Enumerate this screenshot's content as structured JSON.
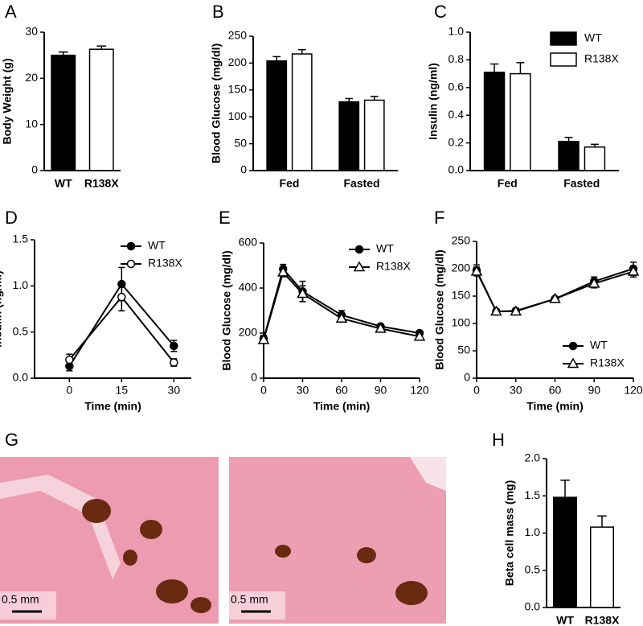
{
  "chart_data": [
    {
      "type": "bar",
      "label": "A",
      "ylabel": "Body Weight (g)",
      "categories": [
        "WT",
        "R138X"
      ],
      "values": [
        25,
        26.3
      ],
      "errors": [
        0.7,
        0.7
      ],
      "colors": [
        "#000000",
        "#ffffff"
      ],
      "ylim": [
        0,
        30
      ],
      "yticks": [
        0,
        10,
        20,
        30
      ]
    },
    {
      "type": "bar",
      "label": "B",
      "ylabel": "Blood Glucose (mg/dl)",
      "categories": [
        "Fed",
        "Fasted"
      ],
      "series": [
        {
          "color": "#000000",
          "values": [
            204,
            128
          ],
          "errors": [
            8,
            6
          ]
        },
        {
          "color": "#ffffff",
          "values": [
            217,
            131
          ],
          "errors": [
            8,
            7
          ]
        }
      ],
      "ylim": [
        0,
        250
      ],
      "yticks": [
        0,
        50,
        100,
        150,
        200,
        250
      ]
    },
    {
      "type": "bar",
      "label": "C",
      "ylabel": "Insulin (ng/ml)",
      "categories": [
        "Fed",
        "Fasted"
      ],
      "series": [
        {
          "name": "WT",
          "color": "#000000",
          "values": [
            0.71,
            0.21
          ],
          "errors": [
            0.06,
            0.03
          ]
        },
        {
          "name": "R138X",
          "color": "#ffffff",
          "values": [
            0.7,
            0.17
          ],
          "errors": [
            0.08,
            0.02
          ]
        }
      ],
      "ylim": [
        0,
        1
      ],
      "yticks": [
        {
          "value": 0,
          "label": "0.0"
        },
        0.2,
        0.4,
        0.6,
        0.8,
        {
          "value": 1,
          "label": "1.0"
        }
      ],
      "legend": "upper right"
    },
    {
      "type": "line",
      "label": "D",
      "xlabel": "Time (min)",
      "ylabel": "Insulin (ng/ml)",
      "x": [
        0,
        15,
        30
      ],
      "series": [
        {
          "name": "WT",
          "color": "#000000",
          "marker": "circle",
          "marker_fill": "#000000",
          "values": [
            0.13,
            1.02,
            0.35
          ],
          "errors": [
            0.05,
            0.18,
            0.06
          ]
        },
        {
          "name": "R138X",
          "color": "#000000",
          "marker": "circle",
          "marker_fill": "#ffffff",
          "values": [
            0.2,
            0.88,
            0.17
          ],
          "errors": [
            0.06,
            0.15,
            0.04
          ]
        }
      ],
      "xlim": [
        -10,
        35
      ],
      "xticks": [
        0,
        15,
        30
      ],
      "ylim": [
        0,
        1.5
      ],
      "yticks": [
        {
          "value": 0,
          "label": "0.0"
        },
        0.5,
        {
          "value": 1,
          "label": "1.0"
        },
        1.5
      ],
      "legend": "upper right"
    },
    {
      "type": "line",
      "label": "E",
      "xlabel": "Time (min)",
      "ylabel": "Blood Glucose (mg/dl)",
      "x": [
        0,
        15,
        30,
        60,
        90,
        120
      ],
      "series": [
        {
          "name": "WT",
          "color": "#000000",
          "marker": "circle",
          "marker_fill": "#000000",
          "values": [
            175,
            485,
            385,
            280,
            230,
            200
          ],
          "errors": [
            15,
            20,
            45,
            20,
            10,
            10
          ]
        },
        {
          "name": "R138X",
          "color": "#000000",
          "marker": "triangle",
          "marker_fill": "#ffffff",
          "values": [
            170,
            470,
            375,
            265,
            220,
            185
          ],
          "errors": [
            12,
            20,
            35,
            15,
            10,
            10
          ]
        }
      ],
      "xlim": [
        0,
        120
      ],
      "xticks": [
        0,
        30,
        60,
        90,
        120
      ],
      "ylim": [
        0,
        600
      ],
      "yticks": [
        0,
        200,
        400,
        600
      ],
      "legend": "upper right"
    },
    {
      "type": "line",
      "label": "F",
      "xlabel": "Time (min)",
      "ylabel": "Blood Glucose (mg/dl)",
      "x": [
        0,
        15,
        30,
        60,
        90,
        120
      ],
      "series": [
        {
          "name": "WT",
          "color": "#000000",
          "marker": "circle",
          "marker_fill": "#000000",
          "values": [
            197,
            122,
            123,
            145,
            177,
            200
          ],
          "errors": [
            10,
            4,
            5,
            4,
            8,
            12
          ]
        },
        {
          "name": "R138X",
          "color": "#000000",
          "marker": "triangle",
          "marker_fill": "#ffffff",
          "values": [
            195,
            122,
            122,
            145,
            173,
            195
          ],
          "errors": [
            8,
            4,
            4,
            4,
            8,
            10
          ]
        }
      ],
      "xlim": [
        0,
        120
      ],
      "xticks": [
        0,
        30,
        60,
        90,
        120
      ],
      "ylim": [
        0,
        250
      ],
      "yticks": [
        0,
        50,
        100,
        150,
        200,
        250
      ],
      "legend": "lower right"
    },
    {
      "type": "bar",
      "label": "H",
      "ylabel": "Beta cell mass (mg)",
      "categories": [
        "WT",
        "R138X"
      ],
      "values": [
        1.48,
        1.08
      ],
      "errors": [
        0.23,
        0.15
      ],
      "colors": [
        "#000000",
        "#ffffff"
      ],
      "ylim": [
        0,
        2
      ],
      "yticks": [
        {
          "value": 0,
          "label": "0.0"
        },
        0.5,
        {
          "value": 1,
          "label": "1.0"
        },
        1.5,
        {
          "value": 2,
          "label": "2.0"
        }
      ]
    }
  ],
  "image_panel": {
    "label": "G",
    "scale_bars": [
      "0.5 mm",
      "0.5 mm"
    ]
  }
}
